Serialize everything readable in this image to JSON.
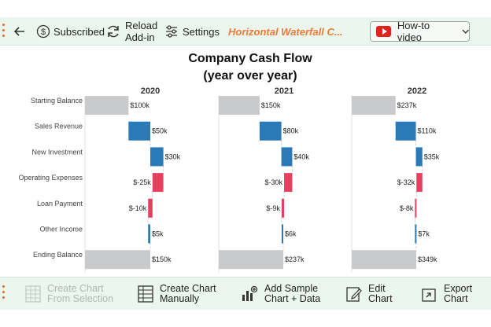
{
  "toolbar": {
    "subscribed_label": "Subscribed",
    "reload_label": "Reload\nAdd-in",
    "settings_label": "Settings",
    "addin_title": "Horizontal Waterfall C...",
    "howto_label": "How-to video"
  },
  "bottom_toolbar": {
    "create_from_selection": "Create Chart\nFrom Selection",
    "create_manually": "Create Chart\nManually",
    "add_sample": "Add Sample\nChart + Data",
    "edit_chart": "Edit\nChart",
    "export_chart": "Export\nChart"
  },
  "chart_data": {
    "type": "bar",
    "title": "Company Cash Flow",
    "subtitle": "(year over year)",
    "categories": [
      "Starting Balance",
      "Sales Revenue",
      "New Investment",
      "Operating Expenses",
      "Loan Payment",
      "Other Income",
      "Ending Balance"
    ],
    "panels": [
      {
        "year": "2020",
        "values": [
          100,
          50,
          30,
          -25,
          -10,
          5,
          150
        ],
        "labels": [
          "$100k",
          "$50k",
          "$30k",
          "$-25k",
          "$-10k",
          "$5k",
          "$150k"
        ]
      },
      {
        "year": "2021",
        "values": [
          150,
          80,
          40,
          -30,
          -9,
          6,
          237
        ],
        "labels": [
          "$150k",
          "$80k",
          "$40k",
          "$-30k",
          "$-9k",
          "$6k",
          "$237k"
        ]
      },
      {
        "year": "2022",
        "values": [
          237,
          110,
          35,
          -32,
          -8,
          7,
          349
        ],
        "labels": [
          "$237k",
          "$110k",
          "$35k",
          "$-32k",
          "$-8k",
          "$7k",
          "$349k"
        ]
      }
    ],
    "colors": {
      "total": "#c8cacc",
      "increase": "#2a7ab8",
      "decrease": "#e63f5f"
    }
  }
}
